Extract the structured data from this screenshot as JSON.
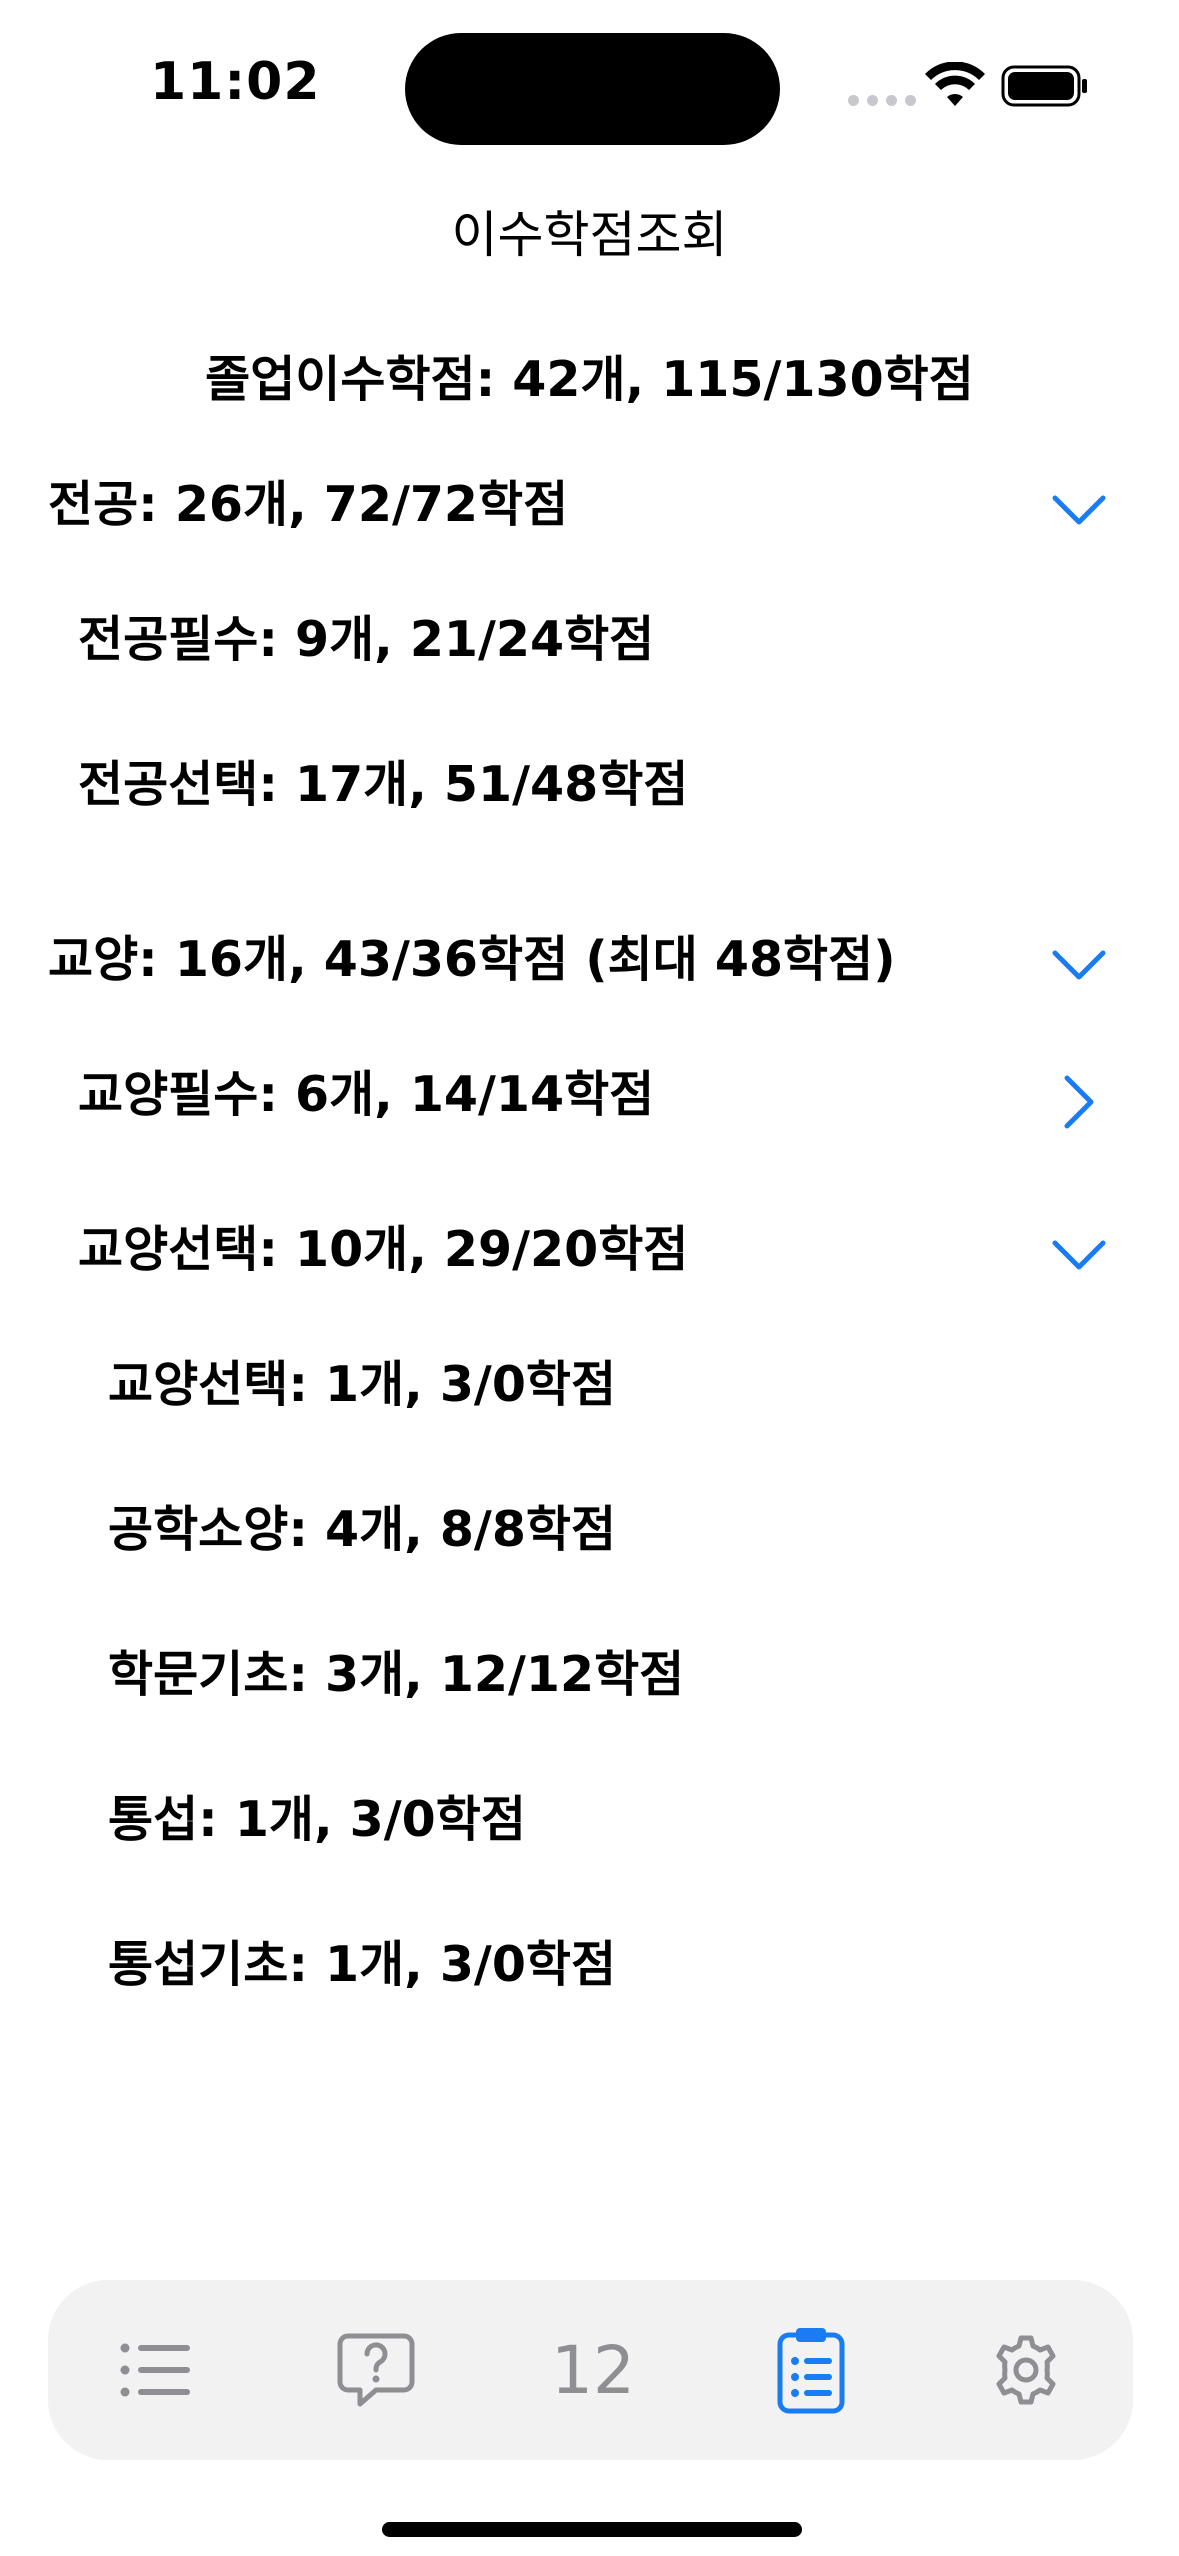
{
  "status_bar": {
    "time": "11:02"
  },
  "nav": {
    "title": "이수학점조회"
  },
  "summary": "졸업이수학점: 42개, 115/130학점",
  "sections": {
    "major": {
      "label": "전공: 26개, 72/72학점",
      "chevron": "chevron-down",
      "children": [
        {
          "label": "전공필수: 9개, 21/24학점"
        },
        {
          "label": "전공선택: 17개, 51/48학점"
        }
      ]
    },
    "liberal": {
      "label": "교양: 16개, 43/36학점  (최대 48학점)",
      "chevron": "chevron-down",
      "required": {
        "label": "교양필수: 6개, 14/14학점",
        "chevron": "chevron-right"
      },
      "elective": {
        "label": "교양선택: 10개, 29/20학점",
        "chevron": "chevron-down",
        "children": [
          {
            "label": "교양선택: 1개, 3/0학점"
          },
          {
            "label": "공학소양: 4개, 8/8학점"
          },
          {
            "label": "학문기초: 3개, 12/12학점"
          },
          {
            "label": "통섭: 1개, 3/0학점"
          },
          {
            "label": "통섭기초: 1개, 3/0학점"
          }
        ]
      }
    }
  },
  "tabbar": {
    "tabs": [
      {
        "icon": "list-icon",
        "active": false
      },
      {
        "icon": "question-bubble-icon",
        "active": false
      },
      {
        "icon": "number-text",
        "text": "12",
        "active": false
      },
      {
        "icon": "clipboard-list-icon",
        "active": true
      },
      {
        "icon": "gear-icon",
        "active": false
      }
    ]
  },
  "colors": {
    "accent": "#1a7cf2",
    "inactive": "#8e8e93",
    "tabbar_bg": "#f2f2f2"
  }
}
